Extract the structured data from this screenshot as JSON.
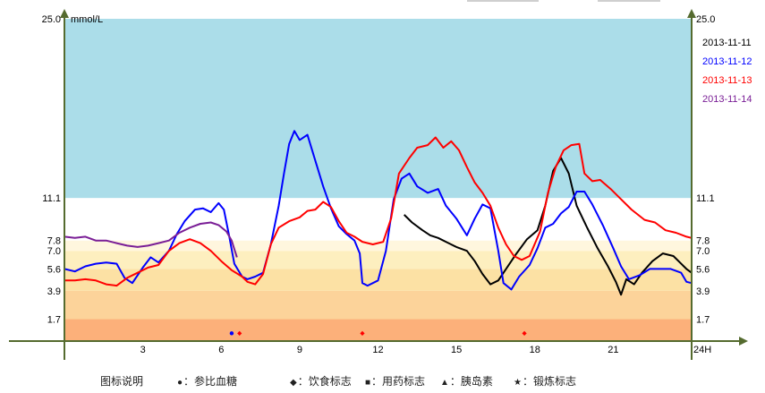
{
  "chart_data": {
    "type": "line",
    "title": "",
    "xlabel": "",
    "ylabel": "mmol/L",
    "x_unit_label": "24H",
    "xlim": [
      0,
      24
    ],
    "ylim": [
      0,
      25
    ],
    "x_ticks": [
      3,
      6,
      9,
      12,
      15,
      18,
      21
    ],
    "y_ticks": [
      {
        "value": 1.7,
        "label": "1.7"
      },
      {
        "value": 3.9,
        "label": "3.9"
      },
      {
        "value": 5.6,
        "label": "5.6"
      },
      {
        "value": 7.0,
        "label": "7.0"
      },
      {
        "value": 7.8,
        "label": "7.8"
      },
      {
        "value": 11.1,
        "label": "11.1"
      },
      {
        "value": 25.0,
        "label": "25.0"
      }
    ],
    "bands": [
      {
        "from": 0,
        "to": 1.7,
        "color": "#fcb07a"
      },
      {
        "from": 1.7,
        "to": 3.9,
        "color": "#fcd39a"
      },
      {
        "from": 3.9,
        "to": 5.6,
        "color": "#fce1a4"
      },
      {
        "from": 5.6,
        "to": 7.0,
        "color": "#fdefbf"
      },
      {
        "from": 7.0,
        "to": 7.8,
        "color": "#fff6de"
      },
      {
        "from": 7.8,
        "to": 11.1,
        "color": "#ffffff"
      },
      {
        "from": 11.1,
        "to": 25.0,
        "color": "#abdde9"
      }
    ],
    "grid": false,
    "legend_position": "top-right",
    "series": [
      {
        "name": "2013-11-11",
        "color": "#000000",
        "points": [
          [
            13.0,
            9.8
          ],
          [
            13.3,
            9.2
          ],
          [
            13.7,
            8.6
          ],
          [
            14.0,
            8.2
          ],
          [
            14.3,
            8.0
          ],
          [
            14.7,
            7.6
          ],
          [
            15.0,
            7.3
          ],
          [
            15.4,
            7.0
          ],
          [
            15.7,
            6.2
          ],
          [
            16.0,
            5.2
          ],
          [
            16.3,
            4.4
          ],
          [
            16.6,
            4.7
          ],
          [
            16.9,
            5.6
          ],
          [
            17.3,
            6.8
          ],
          [
            17.7,
            7.9
          ],
          [
            18.1,
            8.6
          ],
          [
            18.4,
            10.5
          ],
          [
            18.7,
            13.2
          ],
          [
            19.0,
            14.2
          ],
          [
            19.3,
            13.0
          ],
          [
            19.6,
            10.5
          ],
          [
            20.0,
            8.8
          ],
          [
            20.4,
            7.2
          ],
          [
            20.8,
            5.8
          ],
          [
            21.1,
            4.6
          ],
          [
            21.3,
            3.6
          ],
          [
            21.5,
            4.8
          ],
          [
            21.8,
            4.4
          ],
          [
            22.1,
            5.3
          ],
          [
            22.5,
            6.2
          ],
          [
            22.9,
            6.8
          ],
          [
            23.3,
            6.6
          ],
          [
            23.6,
            6.0
          ],
          [
            23.8,
            5.6
          ],
          [
            24.0,
            5.3
          ]
        ]
      },
      {
        "name": "2013-11-12",
        "color": "#0000ff",
        "points": [
          [
            0.0,
            5.6
          ],
          [
            0.4,
            5.4
          ],
          [
            0.8,
            5.8
          ],
          [
            1.2,
            6.0
          ],
          [
            1.6,
            6.1
          ],
          [
            2.0,
            6.0
          ],
          [
            2.3,
            4.9
          ],
          [
            2.6,
            4.5
          ],
          [
            3.0,
            5.7
          ],
          [
            3.3,
            6.5
          ],
          [
            3.6,
            6.1
          ],
          [
            4.0,
            7.0
          ],
          [
            4.3,
            8.3
          ],
          [
            4.6,
            9.3
          ],
          [
            5.0,
            10.2
          ],
          [
            5.3,
            10.3
          ],
          [
            5.6,
            10.0
          ],
          [
            5.9,
            10.7
          ],
          [
            6.1,
            10.2
          ],
          [
            6.3,
            8.2
          ],
          [
            6.5,
            6.0
          ],
          [
            6.8,
            5.0
          ],
          [
            7.0,
            4.8
          ],
          [
            7.3,
            5.0
          ],
          [
            7.6,
            5.3
          ],
          [
            7.9,
            7.5
          ],
          [
            8.2,
            10.5
          ],
          [
            8.4,
            13.0
          ],
          [
            8.6,
            15.3
          ],
          [
            8.8,
            16.3
          ],
          [
            9.0,
            15.6
          ],
          [
            9.3,
            16.0
          ],
          [
            9.6,
            14.0
          ],
          [
            9.9,
            12.0
          ],
          [
            10.2,
            10.3
          ],
          [
            10.5,
            8.9
          ],
          [
            10.8,
            8.3
          ],
          [
            11.1,
            7.8
          ],
          [
            11.3,
            6.8
          ],
          [
            11.4,
            4.5
          ],
          [
            11.6,
            4.3
          ],
          [
            12.0,
            4.7
          ],
          [
            12.3,
            7.0
          ],
          [
            12.6,
            11.0
          ],
          [
            12.9,
            12.6
          ],
          [
            13.2,
            13.0
          ],
          [
            13.5,
            12.0
          ],
          [
            13.9,
            11.5
          ],
          [
            14.3,
            11.8
          ],
          [
            14.6,
            10.5
          ],
          [
            15.0,
            9.5
          ],
          [
            15.4,
            8.2
          ],
          [
            15.7,
            9.5
          ],
          [
            16.0,
            10.6
          ],
          [
            16.3,
            10.3
          ],
          [
            16.6,
            7.0
          ],
          [
            16.8,
            4.5
          ],
          [
            17.1,
            4.0
          ],
          [
            17.4,
            5.0
          ],
          [
            17.8,
            5.9
          ],
          [
            18.1,
            7.2
          ],
          [
            18.4,
            8.8
          ],
          [
            18.7,
            9.1
          ],
          [
            19.0,
            9.9
          ],
          [
            19.3,
            10.4
          ],
          [
            19.6,
            11.6
          ],
          [
            19.9,
            11.6
          ],
          [
            20.2,
            10.6
          ],
          [
            20.6,
            9.0
          ],
          [
            21.0,
            7.2
          ],
          [
            21.3,
            5.8
          ],
          [
            21.6,
            4.8
          ],
          [
            22.0,
            5.1
          ],
          [
            22.4,
            5.6
          ],
          [
            22.8,
            5.6
          ],
          [
            23.2,
            5.6
          ],
          [
            23.6,
            5.3
          ],
          [
            23.8,
            4.6
          ],
          [
            24.0,
            4.5
          ]
        ]
      },
      {
        "name": "2013-11-13",
        "color": "#ff0000",
        "points": [
          [
            0.0,
            4.7
          ],
          [
            0.4,
            4.7
          ],
          [
            0.8,
            4.8
          ],
          [
            1.2,
            4.7
          ],
          [
            1.6,
            4.4
          ],
          [
            2.0,
            4.3
          ],
          [
            2.4,
            4.9
          ],
          [
            2.8,
            5.3
          ],
          [
            3.2,
            5.7
          ],
          [
            3.6,
            5.9
          ],
          [
            4.0,
            7.0
          ],
          [
            4.4,
            7.6
          ],
          [
            4.8,
            7.9
          ],
          [
            5.2,
            7.6
          ],
          [
            5.6,
            7.0
          ],
          [
            6.0,
            6.2
          ],
          [
            6.4,
            5.5
          ],
          [
            6.8,
            5.0
          ],
          [
            7.0,
            4.6
          ],
          [
            7.3,
            4.4
          ],
          [
            7.6,
            5.2
          ],
          [
            7.9,
            7.5
          ],
          [
            8.2,
            8.8
          ],
          [
            8.6,
            9.3
          ],
          [
            9.0,
            9.6
          ],
          [
            9.3,
            10.1
          ],
          [
            9.6,
            10.2
          ],
          [
            9.9,
            10.8
          ],
          [
            10.2,
            10.4
          ],
          [
            10.5,
            9.3
          ],
          [
            10.8,
            8.4
          ],
          [
            11.1,
            8.1
          ],
          [
            11.4,
            7.7
          ],
          [
            11.8,
            7.5
          ],
          [
            12.2,
            7.7
          ],
          [
            12.5,
            9.5
          ],
          [
            12.8,
            13.0
          ],
          [
            13.2,
            14.2
          ],
          [
            13.5,
            15.0
          ],
          [
            13.9,
            15.2
          ],
          [
            14.2,
            15.8
          ],
          [
            14.5,
            15.0
          ],
          [
            14.8,
            15.5
          ],
          [
            15.1,
            14.8
          ],
          [
            15.4,
            13.5
          ],
          [
            15.7,
            12.3
          ],
          [
            16.0,
            11.5
          ],
          [
            16.3,
            10.5
          ],
          [
            16.6,
            8.8
          ],
          [
            16.9,
            7.5
          ],
          [
            17.2,
            6.6
          ],
          [
            17.5,
            6.3
          ],
          [
            17.8,
            6.6
          ],
          [
            18.2,
            8.5
          ],
          [
            18.5,
            11.5
          ],
          [
            18.8,
            13.5
          ],
          [
            19.1,
            14.8
          ],
          [
            19.4,
            15.2
          ],
          [
            19.7,
            15.3
          ],
          [
            19.9,
            13.0
          ],
          [
            20.2,
            12.4
          ],
          [
            20.5,
            12.5
          ],
          [
            20.9,
            11.8
          ],
          [
            21.3,
            11.0
          ],
          [
            21.7,
            10.2
          ],
          [
            22.2,
            9.4
          ],
          [
            22.6,
            9.2
          ],
          [
            23.0,
            8.6
          ],
          [
            23.4,
            8.4
          ],
          [
            23.8,
            8.1
          ],
          [
            24.0,
            8.0
          ]
        ]
      },
      {
        "name": "2013-11-14",
        "color": "#7a1e96",
        "points": [
          [
            0.0,
            8.1
          ],
          [
            0.4,
            8.0
          ],
          [
            0.8,
            8.1
          ],
          [
            1.2,
            7.8
          ],
          [
            1.6,
            7.8
          ],
          [
            2.0,
            7.6
          ],
          [
            2.4,
            7.4
          ],
          [
            2.8,
            7.3
          ],
          [
            3.2,
            7.4
          ],
          [
            3.6,
            7.6
          ],
          [
            4.0,
            7.8
          ],
          [
            4.4,
            8.4
          ],
          [
            4.8,
            8.8
          ],
          [
            5.2,
            9.1
          ],
          [
            5.6,
            9.2
          ],
          [
            5.9,
            9.0
          ],
          [
            6.2,
            8.5
          ],
          [
            6.4,
            7.8
          ],
          [
            6.6,
            6.5
          ]
        ]
      }
    ],
    "markers": [
      {
        "type": "参比血糖",
        "x": 6.4,
        "y": 0.6,
        "color": "#0000ff"
      },
      {
        "type": "饮食标志",
        "x": 6.7,
        "y": 0.6,
        "color": "#ff0000"
      },
      {
        "type": "饮食标志",
        "x": 11.4,
        "y": 0.6,
        "color": "#ff0000"
      },
      {
        "type": "饮食标志",
        "x": 17.6,
        "y": 0.6,
        "color": "#ff0000"
      }
    ],
    "legend": {
      "title": "图标说明",
      "items": [
        {
          "symbol": "●",
          "label": "：参比血糖"
        },
        {
          "symbol": "◆",
          "label": "：饮食标志"
        },
        {
          "symbol": "■",
          "label": "：用药标志"
        },
        {
          "symbol": "▲",
          "label": "：胰岛素"
        },
        {
          "symbol": "★",
          "label": "：锻炼标志"
        }
      ]
    }
  }
}
